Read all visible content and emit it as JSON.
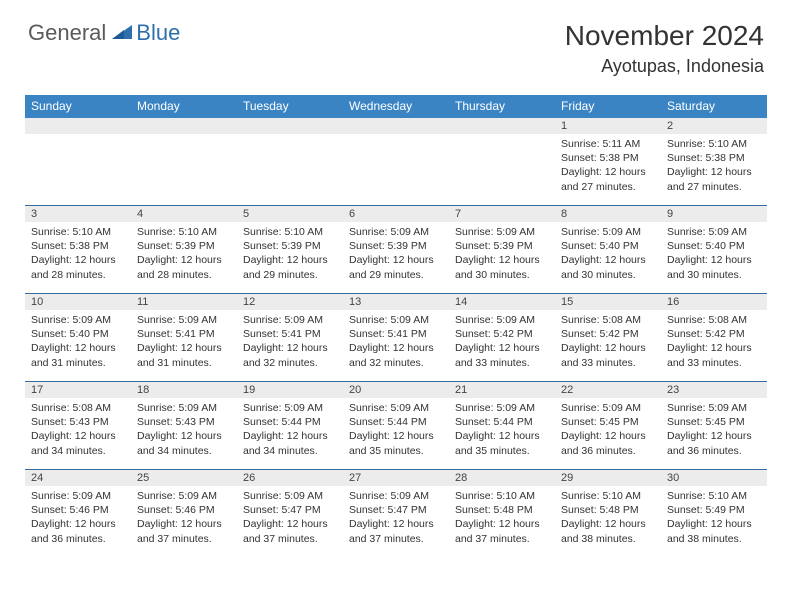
{
  "brand": {
    "general": "General",
    "blue": "Blue"
  },
  "title": "November 2024",
  "location": "Ayotupas, Indonesia",
  "colors": {
    "header_bg": "#3b84c4",
    "header_text": "#ffffff",
    "daynum_bg": "#ececec",
    "row_border": "#3b6ea0",
    "logo_gray": "#5a5a5a",
    "logo_blue": "#2f6fad",
    "text": "#333333"
  },
  "days_of_week": [
    "Sunday",
    "Monday",
    "Tuesday",
    "Wednesday",
    "Thursday",
    "Friday",
    "Saturday"
  ],
  "labels": {
    "sunrise": "Sunrise:",
    "sunset": "Sunset:",
    "daylight": "Daylight:"
  },
  "weeks": [
    [
      {
        "n": ""
      },
      {
        "n": ""
      },
      {
        "n": ""
      },
      {
        "n": ""
      },
      {
        "n": ""
      },
      {
        "n": "1",
        "sr": "5:11 AM",
        "ss": "5:38 PM",
        "dl": "12 hours and 27 minutes."
      },
      {
        "n": "2",
        "sr": "5:10 AM",
        "ss": "5:38 PM",
        "dl": "12 hours and 27 minutes."
      }
    ],
    [
      {
        "n": "3",
        "sr": "5:10 AM",
        "ss": "5:38 PM",
        "dl": "12 hours and 28 minutes."
      },
      {
        "n": "4",
        "sr": "5:10 AM",
        "ss": "5:39 PM",
        "dl": "12 hours and 28 minutes."
      },
      {
        "n": "5",
        "sr": "5:10 AM",
        "ss": "5:39 PM",
        "dl": "12 hours and 29 minutes."
      },
      {
        "n": "6",
        "sr": "5:09 AM",
        "ss": "5:39 PM",
        "dl": "12 hours and 29 minutes."
      },
      {
        "n": "7",
        "sr": "5:09 AM",
        "ss": "5:39 PM",
        "dl": "12 hours and 30 minutes."
      },
      {
        "n": "8",
        "sr": "5:09 AM",
        "ss": "5:40 PM",
        "dl": "12 hours and 30 minutes."
      },
      {
        "n": "9",
        "sr": "5:09 AM",
        "ss": "5:40 PM",
        "dl": "12 hours and 30 minutes."
      }
    ],
    [
      {
        "n": "10",
        "sr": "5:09 AM",
        "ss": "5:40 PM",
        "dl": "12 hours and 31 minutes."
      },
      {
        "n": "11",
        "sr": "5:09 AM",
        "ss": "5:41 PM",
        "dl": "12 hours and 31 minutes."
      },
      {
        "n": "12",
        "sr": "5:09 AM",
        "ss": "5:41 PM",
        "dl": "12 hours and 32 minutes."
      },
      {
        "n": "13",
        "sr": "5:09 AM",
        "ss": "5:41 PM",
        "dl": "12 hours and 32 minutes."
      },
      {
        "n": "14",
        "sr": "5:09 AM",
        "ss": "5:42 PM",
        "dl": "12 hours and 33 minutes."
      },
      {
        "n": "15",
        "sr": "5:08 AM",
        "ss": "5:42 PM",
        "dl": "12 hours and 33 minutes."
      },
      {
        "n": "16",
        "sr": "5:08 AM",
        "ss": "5:42 PM",
        "dl": "12 hours and 33 minutes."
      }
    ],
    [
      {
        "n": "17",
        "sr": "5:08 AM",
        "ss": "5:43 PM",
        "dl": "12 hours and 34 minutes."
      },
      {
        "n": "18",
        "sr": "5:09 AM",
        "ss": "5:43 PM",
        "dl": "12 hours and 34 minutes."
      },
      {
        "n": "19",
        "sr": "5:09 AM",
        "ss": "5:44 PM",
        "dl": "12 hours and 34 minutes."
      },
      {
        "n": "20",
        "sr": "5:09 AM",
        "ss": "5:44 PM",
        "dl": "12 hours and 35 minutes."
      },
      {
        "n": "21",
        "sr": "5:09 AM",
        "ss": "5:44 PM",
        "dl": "12 hours and 35 minutes."
      },
      {
        "n": "22",
        "sr": "5:09 AM",
        "ss": "5:45 PM",
        "dl": "12 hours and 36 minutes."
      },
      {
        "n": "23",
        "sr": "5:09 AM",
        "ss": "5:45 PM",
        "dl": "12 hours and 36 minutes."
      }
    ],
    [
      {
        "n": "24",
        "sr": "5:09 AM",
        "ss": "5:46 PM",
        "dl": "12 hours and 36 minutes."
      },
      {
        "n": "25",
        "sr": "5:09 AM",
        "ss": "5:46 PM",
        "dl": "12 hours and 37 minutes."
      },
      {
        "n": "26",
        "sr": "5:09 AM",
        "ss": "5:47 PM",
        "dl": "12 hours and 37 minutes."
      },
      {
        "n": "27",
        "sr": "5:09 AM",
        "ss": "5:47 PM",
        "dl": "12 hours and 37 minutes."
      },
      {
        "n": "28",
        "sr": "5:10 AM",
        "ss": "5:48 PM",
        "dl": "12 hours and 37 minutes."
      },
      {
        "n": "29",
        "sr": "5:10 AM",
        "ss": "5:48 PM",
        "dl": "12 hours and 38 minutes."
      },
      {
        "n": "30",
        "sr": "5:10 AM",
        "ss": "5:49 PM",
        "dl": "12 hours and 38 minutes."
      }
    ]
  ]
}
